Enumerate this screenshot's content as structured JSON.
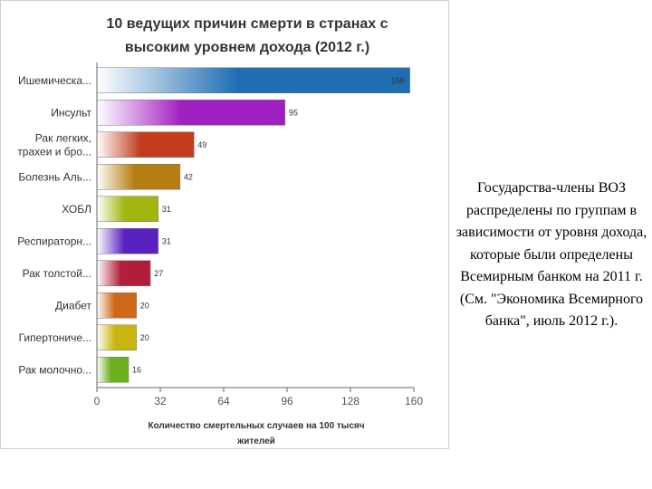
{
  "chart_data": {
    "type": "bar",
    "orientation": "horizontal",
    "title_lines": [
      "10 ведущих причин смерти в странах с",
      "высоким уровнем дохода (2012 г.)"
    ],
    "categories": [
      [
        "Ишемическа..."
      ],
      [
        "Инсульт"
      ],
      [
        "Рак легких,",
        "трахеи и бро..."
      ],
      [
        "Болезнь Аль..."
      ],
      [
        "ХОБЛ"
      ],
      [
        "Респираторн..."
      ],
      [
        "Рак толстой..."
      ],
      [
        "Диабет"
      ],
      [
        "Гипертониче..."
      ],
      [
        "Рак молочно..."
      ]
    ],
    "values": [
      158,
      95,
      49,
      42,
      31,
      31,
      27,
      20,
      20,
      16
    ],
    "value_labels": [
      "158",
      "95",
      "49",
      "42",
      "31",
      "31",
      "27",
      "20",
      "20",
      "16"
    ],
    "colors": [
      "#1f6eb3",
      "#a01fc0",
      "#c23c1e",
      "#b57e12",
      "#a3b511",
      "#5922c0",
      "#b21e3a",
      "#cc6818",
      "#c9b512",
      "#6bb01e"
    ],
    "xlim": [
      0,
      160
    ],
    "xticks": [
      0,
      32,
      64,
      96,
      128,
      160
    ],
    "xlabel_lines": [
      "Количество смертельных случаев на 100 тысяч",
      "жителей"
    ],
    "grid": false,
    "legend": "none"
  },
  "side_note": "Государства-члены ВОЗ распределены по группам в зависимости от уровня дохода, которые были определены Всемирным банком на 2011 г. (См. \"Экономика Всемирного банка\", июль 2012 г.)."
}
